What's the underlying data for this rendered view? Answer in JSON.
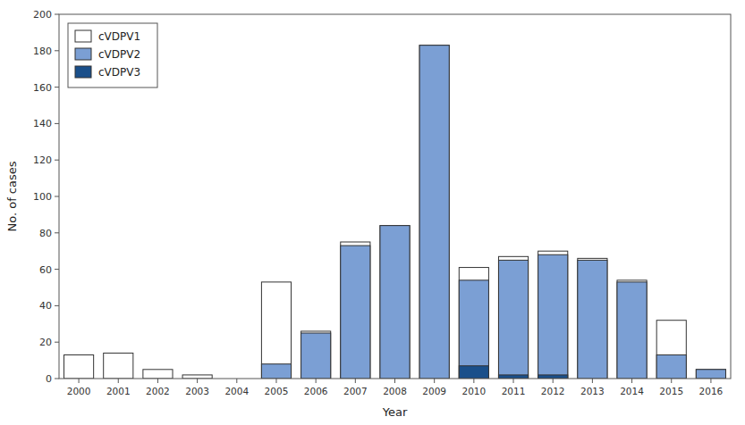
{
  "chart_data": {
    "type": "bar",
    "x": [
      2000,
      2001,
      2002,
      2003,
      2004,
      2005,
      2006,
      2007,
      2008,
      2009,
      2010,
      2011,
      2012,
      2013,
      2014,
      2015,
      2016
    ],
    "xlim": [
      1999.5,
      2016.5
    ],
    "xticks": [
      2000,
      2001,
      2002,
      2003,
      2004,
      2005,
      2006,
      2007,
      2008,
      2009,
      2010,
      2011,
      2012,
      2013,
      2014,
      2015,
      2016
    ],
    "xlabel": "Year",
    "ylabel": "No. of cases",
    "ylim": [
      0,
      200
    ],
    "yticks": [
      0,
      20,
      40,
      60,
      80,
      100,
      120,
      140,
      160,
      180,
      200
    ],
    "legend": "upper-left",
    "grid": false,
    "series": [
      {
        "name": "cVDPV1",
        "color": "#ffffff",
        "values": [
          13,
          14,
          5,
          2,
          0,
          53,
          26,
          75,
          84,
          183,
          61,
          67,
          70,
          66,
          54,
          32,
          5
        ]
      },
      {
        "name": "cVDPV2",
        "color": "#7b9fd4",
        "values": [
          0,
          0,
          0,
          0,
          0,
          8,
          25,
          73,
          84,
          183,
          54,
          65,
          68,
          65,
          53,
          13,
          5
        ]
      },
      {
        "name": "cVDPV3",
        "color": "#1a4f8a",
        "values": [
          0,
          0,
          0,
          0,
          0,
          0,
          0,
          0,
          0,
          0,
          7,
          2,
          2,
          0,
          0,
          0,
          0
        ]
      }
    ]
  }
}
